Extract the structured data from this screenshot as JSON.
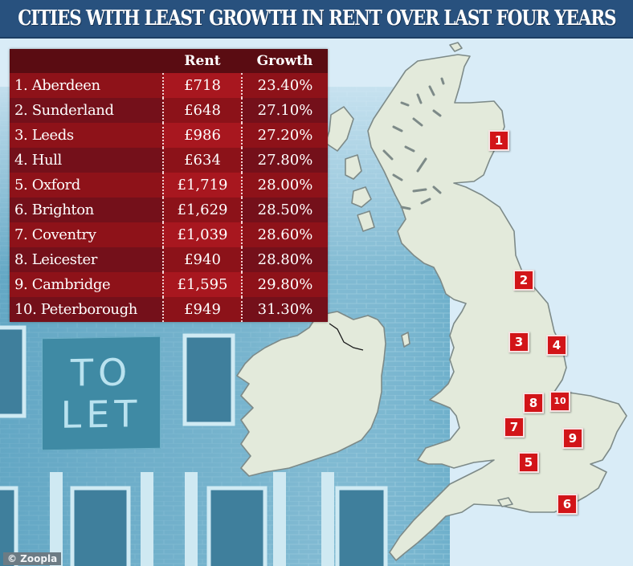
{
  "header": {
    "title": "CITIES WITH LEAST GROWTH IN RENT OVER LAST FOUR YEARS"
  },
  "table": {
    "columns": [
      "",
      "Rent",
      "Growth"
    ],
    "rows": [
      {
        "rank": 1,
        "label": "1. Aberdeen",
        "rent": "£718",
        "growth": "23.40%"
      },
      {
        "rank": 2,
        "label": "2. Sunderland",
        "rent": "£648",
        "growth": "27.10%"
      },
      {
        "rank": 3,
        "label": "3. Leeds",
        "rent": "£986",
        "growth": "27.20%"
      },
      {
        "rank": 4,
        "label": "4. Hull",
        "rent": "£634",
        "growth": "27.80%"
      },
      {
        "rank": 5,
        "label": "5. Oxford",
        "rent": "£1,719",
        "growth": "28.00%"
      },
      {
        "rank": 6,
        "label": "6. Brighton",
        "rent": "£1,629",
        "growth": "28.50%"
      },
      {
        "rank": 7,
        "label": "7. Coventry",
        "rent": "£1,039",
        "growth": "28.60%"
      },
      {
        "rank": 8,
        "label": "8. Leicester",
        "rent": "£940",
        "growth": "28.80%"
      },
      {
        "rank": 9,
        "label": "9. Cambridge",
        "rent": "£1,595",
        "growth": "29.80%"
      },
      {
        "rank": 10,
        "label": "10. Peterborough",
        "rent": "£949",
        "growth": "31.30%"
      }
    ]
  },
  "map": {
    "markers": [
      {
        "label": "1",
        "city": "Aberdeen"
      },
      {
        "label": "2",
        "city": "Sunderland"
      },
      {
        "label": "3",
        "city": "Leeds"
      },
      {
        "label": "4",
        "city": "Hull"
      },
      {
        "label": "5",
        "city": "Oxford"
      },
      {
        "label": "6",
        "city": "Brighton"
      },
      {
        "label": "7",
        "city": "Coventry"
      },
      {
        "label": "8",
        "city": "Leicester"
      },
      {
        "label": "9",
        "city": "Cambridge"
      },
      {
        "label": "10",
        "city": "Peterborough"
      }
    ],
    "marker_color": "#d21418"
  },
  "background": {
    "sign_line1": "TO",
    "sign_line2": "LET"
  },
  "credit": "© Zoopla",
  "colors": {
    "title_bar": "#28517e",
    "table_header": "#5a0c12",
    "table_row_dark": "#74101a",
    "table_row_light": "#8e1219",
    "land": "#e3eadb",
    "sea": "#d9ecf7"
  }
}
